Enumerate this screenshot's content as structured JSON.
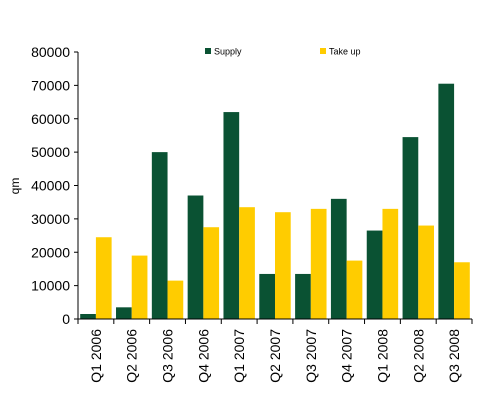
{
  "chart_data": {
    "type": "bar",
    "title": "",
    "xlabel": "",
    "ylabel": "qm",
    "ylim": [
      0,
      80000
    ],
    "ytick_step": 10000,
    "grid": false,
    "legend_position": "top",
    "categories": [
      "Q1 2006",
      "Q2 2006",
      "Q3 2006",
      "Q4 2006",
      "Q1 2007",
      "Q2 2007",
      "Q3 2007",
      "Q4 2007",
      "Q1 2008",
      "Q2 2008",
      "Q3 2008"
    ],
    "series": [
      {
        "name": "Supply",
        "color": "#0a5233",
        "values": [
          1500,
          3500,
          50000,
          37000,
          62000,
          13500,
          13500,
          36000,
          26500,
          54500,
          70500
        ]
      },
      {
        "name": "Take up",
        "color": "#ffcc00",
        "values": [
          24500,
          19000,
          11500,
          27500,
          33500,
          32000,
          33000,
          17500,
          33000,
          28000,
          17000
        ]
      }
    ]
  }
}
